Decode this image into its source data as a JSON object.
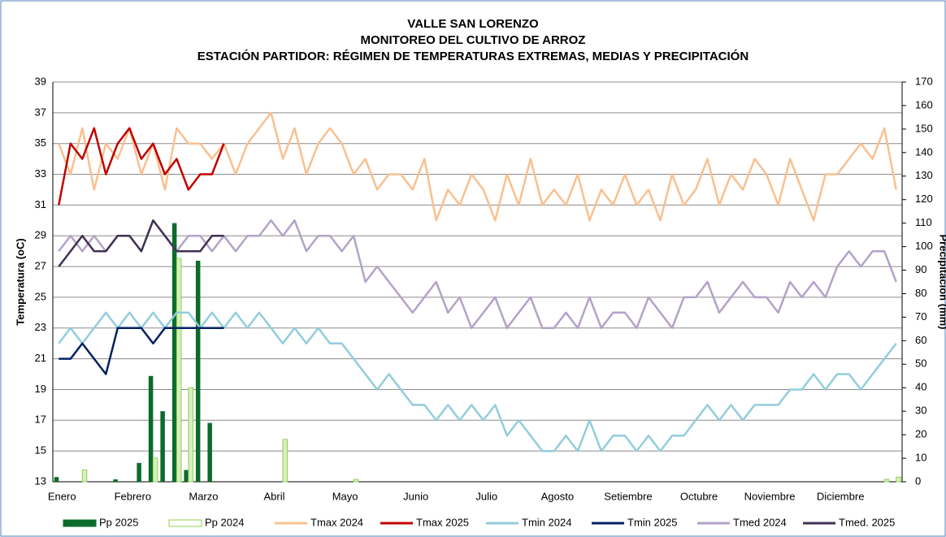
{
  "chart_data": {
    "type": "line",
    "title": [
      "VALLE SAN LORENZO",
      "MONITOREO DEL CULTIVO DE ARROZ",
      "ESTACIÓN PARTIDOR: RÉGIMEN DE TEMPERATURAS EXTREMAS, MEDIAS Y PRECIPITACIÓN"
    ],
    "y_label": "Temperatura (oC)",
    "y2_label": "Precipitación (mm)",
    "ylim": [
      13,
      39
    ],
    "yticks": [
      13,
      15,
      17,
      19,
      21,
      23,
      25,
      27,
      29,
      31,
      33,
      35,
      37,
      39
    ],
    "y2lim": [
      0,
      170
    ],
    "y2ticks": [
      0,
      10,
      20,
      30,
      40,
      50,
      60,
      70,
      80,
      90,
      100,
      110,
      120,
      130,
      140,
      150,
      160,
      170
    ],
    "grid": true,
    "categories": [
      "Enero",
      null,
      null,
      null,
      null,
      null,
      "Febrero",
      null,
      null,
      null,
      null,
      null,
      "Marzo",
      null,
      null,
      null,
      null,
      null,
      "Abril",
      null,
      null,
      null,
      null,
      null,
      "Mayo",
      null,
      null,
      null,
      null,
      null,
      "Junio",
      null,
      null,
      null,
      null,
      null,
      "Julio",
      null,
      null,
      null,
      null,
      null,
      "Agosto",
      null,
      null,
      null,
      null,
      null,
      "Setiembre",
      null,
      null,
      null,
      null,
      null,
      "Octubre",
      null,
      null,
      null,
      null,
      null,
      "Noviembre",
      null,
      null,
      null,
      null,
      null,
      "Diciembre",
      null,
      null,
      null,
      null,
      null
    ],
    "series": [
      {
        "name": "Pp 2025",
        "type": "bar",
        "axis": "y2",
        "color": "#0b6b2b",
        "filled": true,
        "values": [
          2,
          0,
          0,
          0,
          0,
          1,
          0,
          8,
          45,
          30,
          110,
          5,
          94,
          25,
          0,
          null,
          null,
          null,
          null,
          null,
          null,
          null,
          null,
          null,
          null,
          null,
          null,
          null,
          null,
          null,
          null,
          null,
          null,
          null,
          null,
          null,
          null,
          null,
          null,
          null,
          null,
          null,
          null,
          null,
          null,
          null,
          null,
          null,
          null,
          null,
          null,
          null,
          null,
          null,
          null,
          null,
          null,
          null,
          null,
          null,
          null,
          null,
          null,
          null,
          null,
          null,
          null,
          null,
          null,
          null,
          null,
          null
        ]
      },
      {
        "name": "Pp 2024",
        "type": "bar",
        "axis": "y2",
        "color": "#92d050",
        "filled": false,
        "values": [
          0,
          0,
          5,
          0,
          0,
          0,
          0,
          0,
          10,
          0,
          95,
          40,
          0,
          0,
          0,
          0,
          0,
          0,
          0,
          18,
          0,
          0,
          0,
          0,
          0,
          1,
          0,
          0,
          0,
          0,
          0,
          0,
          0,
          0,
          0,
          0,
          0,
          0,
          0,
          0,
          0,
          0,
          0,
          0,
          0,
          0,
          0,
          0,
          0,
          0,
          0,
          0,
          0,
          0,
          0,
          0,
          0,
          0,
          0,
          0,
          0,
          0,
          0,
          0,
          0,
          0,
          0,
          0,
          0,
          0,
          1,
          2
        ]
      },
      {
        "name": "Tmax 2024",
        "type": "line",
        "color": "#f9c08f",
        "values": [
          35,
          33,
          36,
          32,
          35,
          34,
          36,
          33,
          35,
          32,
          36,
          35,
          35,
          34,
          35,
          33,
          35,
          36,
          37,
          34,
          36,
          33,
          35,
          36,
          35,
          33,
          34,
          32,
          33,
          33,
          32,
          34,
          30,
          32,
          31,
          33,
          32,
          30,
          33,
          31,
          34,
          31,
          32,
          31,
          33,
          30,
          32,
          31,
          33,
          31,
          32,
          30,
          33,
          31,
          32,
          34,
          31,
          33,
          32,
          34,
          33,
          31,
          34,
          32,
          30,
          33,
          33,
          34,
          35,
          34,
          36,
          32
        ]
      },
      {
        "name": "Tmax 2025",
        "type": "line",
        "color": "#c00000",
        "values": [
          31,
          35,
          34,
          36,
          33,
          35,
          36,
          34,
          35,
          33,
          34,
          32,
          33,
          33,
          35,
          null,
          null,
          null,
          null,
          null,
          null,
          null,
          null,
          null,
          null,
          null,
          null,
          null,
          null,
          null,
          null,
          null,
          null,
          null,
          null,
          null,
          null,
          null,
          null,
          null,
          null,
          null,
          null,
          null,
          null,
          null,
          null,
          null,
          null,
          null,
          null,
          null,
          null,
          null,
          null,
          null,
          null,
          null,
          null,
          null,
          null,
          null,
          null,
          null,
          null,
          null,
          null,
          null,
          null,
          null,
          null,
          null
        ]
      },
      {
        "name": "Tmin 2024",
        "type": "line",
        "color": "#92cddc",
        "values": [
          22,
          23,
          22,
          23,
          24,
          23,
          24,
          23,
          24,
          23,
          24,
          24,
          23,
          24,
          23,
          24,
          23,
          24,
          23,
          22,
          23,
          22,
          23,
          22,
          22,
          21,
          20,
          19,
          20,
          19,
          18,
          18,
          17,
          18,
          17,
          18,
          17,
          18,
          16,
          17,
          16,
          15,
          15,
          16,
          15,
          17,
          15,
          16,
          16,
          15,
          16,
          15,
          16,
          16,
          17,
          18,
          17,
          18,
          17,
          18,
          18,
          18,
          19,
          19,
          20,
          19,
          20,
          20,
          19,
          20,
          21,
          22
        ]
      },
      {
        "name": "Tmin 2025",
        "type": "line",
        "color": "#002060",
        "values": [
          21,
          21,
          22,
          21,
          20,
          23,
          23,
          23,
          22,
          23,
          23,
          23,
          23,
          23,
          23,
          null,
          null,
          null,
          null,
          null,
          null,
          null,
          null,
          null,
          null,
          null,
          null,
          null,
          null,
          null,
          null,
          null,
          null,
          null,
          null,
          null,
          null,
          null,
          null,
          null,
          null,
          null,
          null,
          null,
          null,
          null,
          null,
          null,
          null,
          null,
          null,
          null,
          null,
          null,
          null,
          null,
          null,
          null,
          null,
          null,
          null,
          null,
          null,
          null,
          null,
          null,
          null,
          null,
          null,
          null,
          null,
          null
        ]
      },
      {
        "name": "Tmed 2024",
        "type": "line",
        "color": "#b3a2c7",
        "values": [
          28,
          29,
          28,
          29,
          28,
          29,
          29,
          28,
          30,
          29,
          28,
          29,
          29,
          28,
          29,
          28,
          29,
          29,
          30,
          29,
          30,
          28,
          29,
          29,
          28,
          29,
          26,
          27,
          26,
          25,
          24,
          25,
          26,
          24,
          25,
          23,
          24,
          25,
          23,
          24,
          25,
          23,
          23,
          24,
          23,
          25,
          23,
          24,
          24,
          23,
          25,
          24,
          23,
          25,
          25,
          26,
          24,
          25,
          26,
          25,
          25,
          24,
          26,
          25,
          26,
          25,
          27,
          28,
          27,
          28,
          28,
          26
        ]
      },
      {
        "name": "Tmed. 2025",
        "type": "line",
        "color": "#3f3151",
        "values": [
          27,
          28,
          29,
          28,
          28,
          29,
          29,
          28,
          30,
          29,
          28,
          28,
          28,
          29,
          29,
          null,
          null,
          null,
          null,
          null,
          null,
          null,
          null,
          null,
          null,
          null,
          null,
          null,
          null,
          null,
          null,
          null,
          null,
          null,
          null,
          null,
          null,
          null,
          null,
          null,
          null,
          null,
          null,
          null,
          null,
          null,
          null,
          null,
          null,
          null,
          null,
          null,
          null,
          null,
          null,
          null,
          null,
          null,
          null,
          null,
          null,
          null,
          null,
          null,
          null,
          null,
          null,
          null,
          null,
          null,
          null,
          null
        ]
      }
    ]
  }
}
